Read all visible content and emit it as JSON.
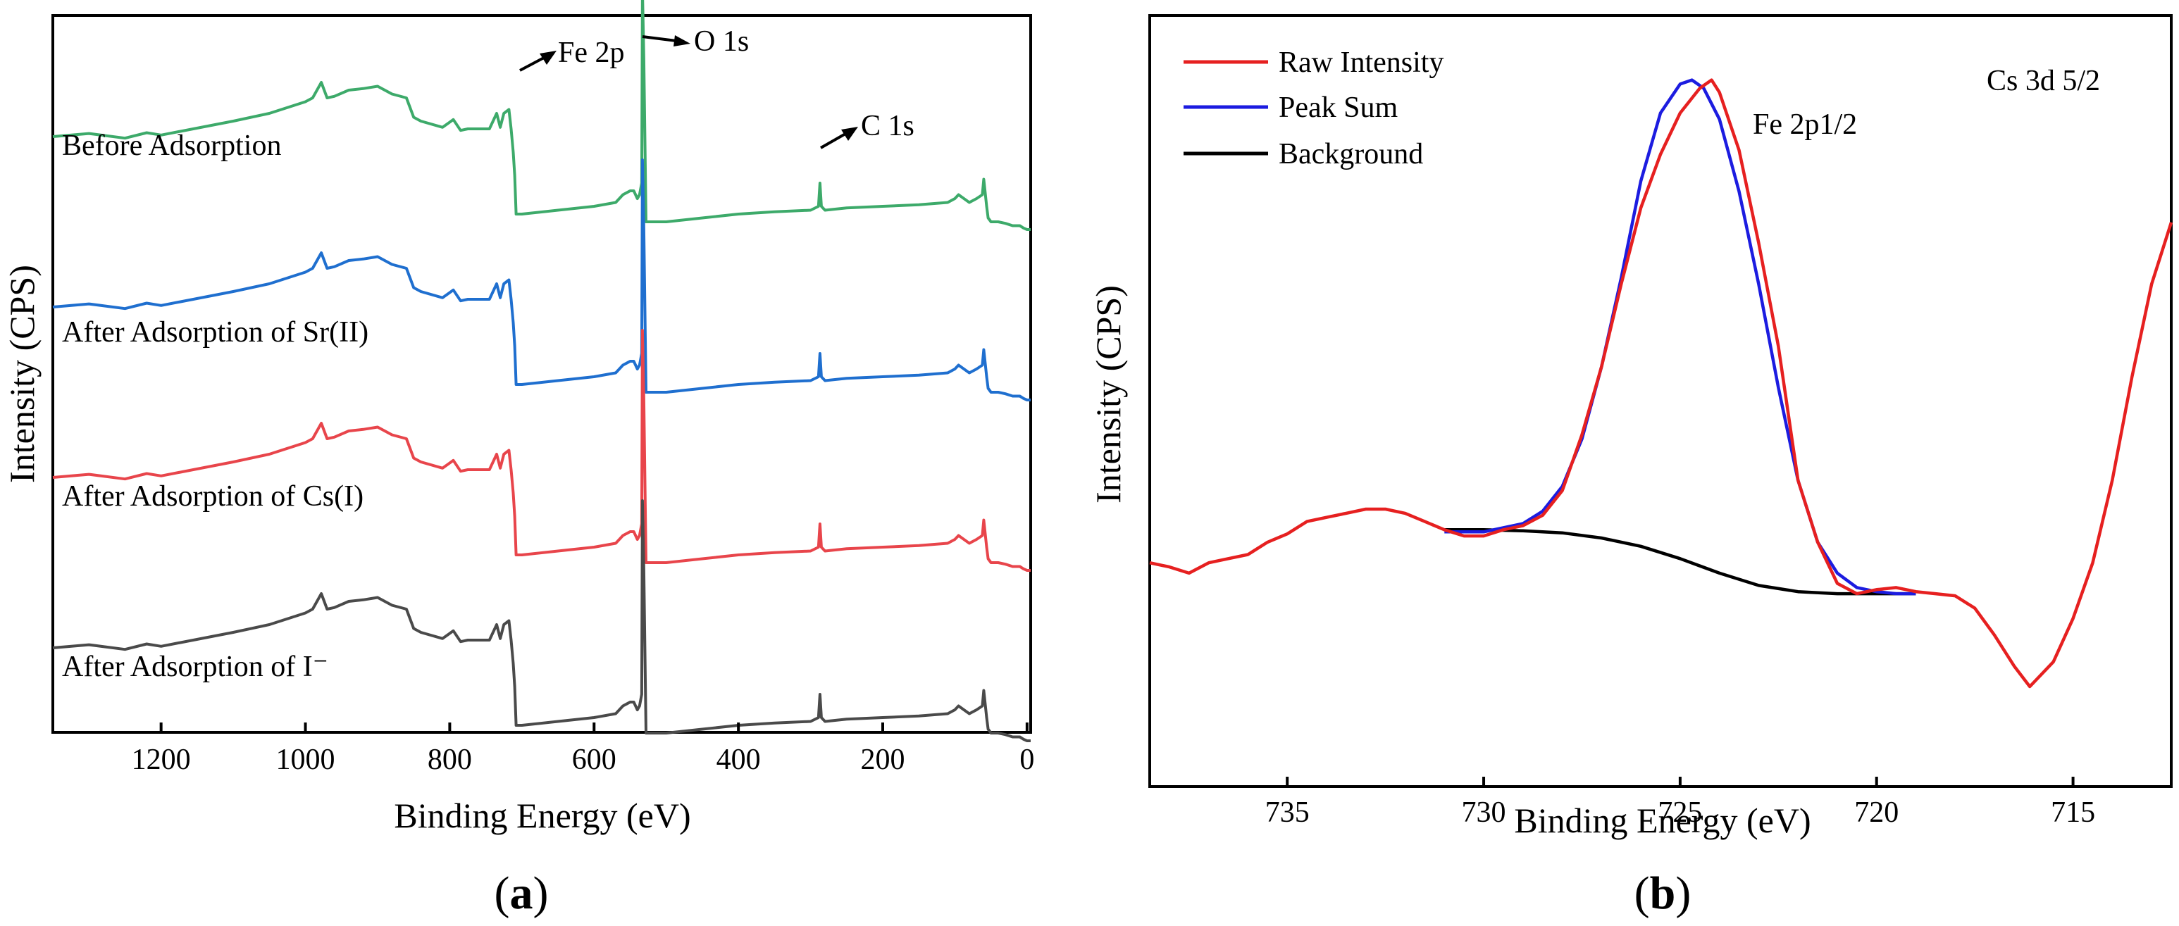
{
  "panel_labels": {
    "a": "a",
    "b": "b"
  },
  "chart_data": [
    {
      "type": "line",
      "xlabel": "Binding Energy (eV)",
      "ylabel": "Intensity (CPS)",
      "xlim": [
        1350,
        -5
      ],
      "xticks": [
        1200,
        1000,
        800,
        600,
        400,
        200,
        0
      ],
      "tick_labels": [
        "1200",
        "1000",
        "800",
        "600",
        "400",
        "200",
        "0"
      ],
      "annotations": [
        "Fe 2p",
        "O 1s",
        "C 1s"
      ],
      "series": [
        {
          "name": "Before Adsorption",
          "color": "#3daa6a",
          "offset": 3
        },
        {
          "name": "After Adsorption of Sr(II)",
          "color": "#1f6fcf",
          "offset": 2
        },
        {
          "name": "After Adsorption of Cs(I)",
          "color": "#e8454b",
          "offset": 1
        },
        {
          "name": "After Adsorption of I⁻",
          "color": "#4a4a4a",
          "offset": 0
        }
      ],
      "profile_x": [
        1350,
        1300,
        1250,
        1220,
        1200,
        1100,
        1050,
        1000,
        990,
        978,
        970,
        960,
        940,
        920,
        900,
        880,
        860,
        850,
        840,
        810,
        795,
        785,
        775,
        745,
        735,
        730,
        725,
        718,
        715,
        712,
        710,
        708,
        700,
        650,
        600,
        570,
        560,
        550,
        545,
        540,
        537,
        534,
        533,
        531,
        528,
        500,
        450,
        400,
        350,
        300,
        289,
        287,
        285,
        280,
        250,
        200,
        150,
        110,
        100,
        95,
        80,
        70,
        62,
        60,
        56,
        54,
        50,
        40,
        30,
        20,
        10,
        5,
        0,
        -5
      ],
      "profile_y": [
        0,
        0.04,
        -0.02,
        0.05,
        0.02,
        0.2,
        0.3,
        0.45,
        0.5,
        0.7,
        0.5,
        0.52,
        0.6,
        0.62,
        0.65,
        0.55,
        0.5,
        0.25,
        0.2,
        0.12,
        0.22,
        0.08,
        0.1,
        0.1,
        0.3,
        0.12,
        0.3,
        0.35,
        0.1,
        -0.2,
        -0.5,
        -1.0,
        -1.0,
        -0.95,
        -0.9,
        -0.85,
        -0.75,
        -0.7,
        -0.7,
        -0.8,
        -0.75,
        -0.6,
        1.9,
        1.0,
        -1.1,
        -1.1,
        -1.05,
        -1.0,
        -0.97,
        -0.95,
        -0.9,
        -0.6,
        -0.9,
        -0.95,
        -0.92,
        -0.9,
        -0.88,
        -0.85,
        -0.8,
        -0.75,
        -0.85,
        -0.8,
        -0.75,
        -0.55,
        -0.9,
        -1.05,
        -1.1,
        -1.1,
        -1.12,
        -1.15,
        -1.15,
        -1.18,
        -1.2,
        -1.2
      ]
    },
    {
      "type": "line",
      "xlabel": "Binding Energy (eV)",
      "ylabel": "Intensity (CPS)",
      "xlim": [
        738.5,
        712.5
      ],
      "xticks": [
        735,
        730,
        725,
        720,
        715
      ],
      "tick_labels": [
        "735",
        "730",
        "725",
        "720",
        "715"
      ],
      "annotations": [
        "Fe 2p1/2",
        "Cs 3d 5/2"
      ],
      "series": [
        {
          "name": "Raw Intensity",
          "color": "#e62020",
          "x": [
            738.5,
            738,
            737.5,
            737,
            736.5,
            736,
            735.5,
            735,
            734.5,
            734,
            733.5,
            733,
            732.5,
            732,
            731.5,
            731,
            730.5,
            730,
            729.5,
            729,
            728.5,
            728,
            727.5,
            727,
            726.5,
            726,
            725.5,
            725,
            724.5,
            724.2,
            724,
            723.5,
            723,
            722.5,
            722,
            721.5,
            721,
            720.5,
            720,
            719.5,
            719,
            718.5,
            718,
            717.5,
            717,
            716.5,
            716.1,
            715.5,
            715,
            714.5,
            714,
            713.5,
            713,
            712.5
          ],
          "y": [
            0.6,
            0.58,
            0.55,
            0.6,
            0.62,
            0.64,
            0.7,
            0.74,
            0.8,
            0.82,
            0.84,
            0.86,
            0.86,
            0.84,
            0.8,
            0.76,
            0.73,
            0.73,
            0.76,
            0.78,
            0.83,
            0.95,
            1.22,
            1.55,
            1.95,
            2.32,
            2.58,
            2.78,
            2.9,
            2.94,
            2.88,
            2.6,
            2.15,
            1.65,
            1.0,
            0.7,
            0.5,
            0.45,
            0.47,
            0.48,
            0.46,
            0.45,
            0.44,
            0.38,
            0.25,
            0.1,
            0.0,
            0.12,
            0.33,
            0.6,
            1.0,
            1.5,
            1.95,
            2.25
          ]
        },
        {
          "name": "Peak Sum",
          "color": "#1c1ce0",
          "x": [
            731,
            730,
            729,
            728.5,
            728,
            727.5,
            727,
            726.5,
            726,
            725.5,
            725,
            724.7,
            724.4,
            724,
            723.5,
            723,
            722.5,
            722,
            721.5,
            721,
            720.5,
            720,
            719.5,
            719
          ],
          "y": [
            0.75,
            0.75,
            0.79,
            0.85,
            0.97,
            1.2,
            1.55,
            1.98,
            2.45,
            2.78,
            2.92,
            2.94,
            2.9,
            2.75,
            2.4,
            1.95,
            1.45,
            1.0,
            0.7,
            0.55,
            0.48,
            0.46,
            0.45,
            0.45
          ]
        },
        {
          "name": "Background",
          "color": "#000000",
          "x": [
            731,
            730,
            729,
            728,
            727,
            726,
            725,
            724,
            723,
            722,
            721,
            720,
            719
          ],
          "y": [
            0.76,
            0.76,
            0.755,
            0.745,
            0.72,
            0.68,
            0.62,
            0.55,
            0.49,
            0.46,
            0.45,
            0.45,
            0.45
          ]
        }
      ]
    }
  ]
}
